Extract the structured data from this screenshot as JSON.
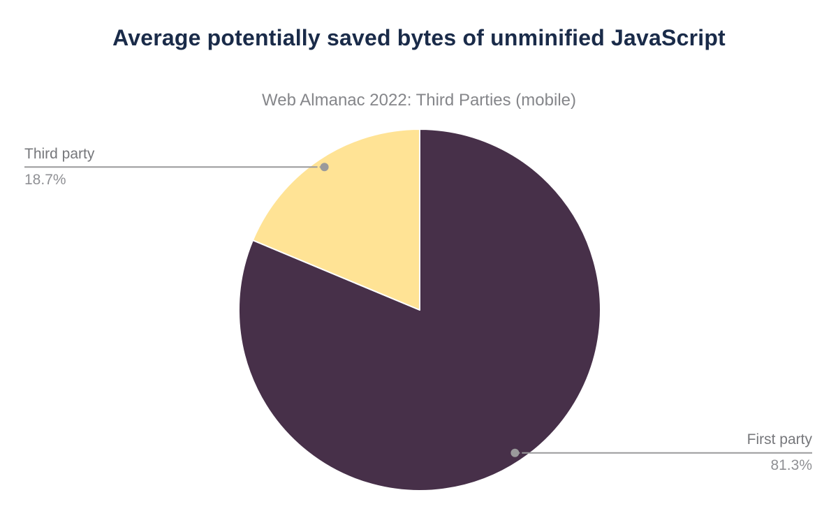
{
  "chart_data": {
    "type": "pie",
    "title": "Average potentially saved bytes of unminified JavaScript",
    "subtitle": "Web Almanac 2022: Third Parties (mobile)",
    "total": 100,
    "start_angle_deg": 0,
    "direction": "clockwise",
    "legend": "none",
    "label_style": "external-callout",
    "slices": [
      {
        "label": "First party",
        "value": 81.3,
        "display_value": "81.3%",
        "color": "#473049",
        "callout_side": "right"
      },
      {
        "label": "Third party",
        "value": 18.7,
        "display_value": "18.7%",
        "color": "#ffe395",
        "callout_side": "left"
      }
    ]
  },
  "styles": {
    "background": "#ffffff",
    "title_color": "#1a2b49",
    "subtitle_color": "#85868a",
    "label_name_color": "#76777b",
    "label_value_color": "#8f9094",
    "leader_color": "#9a9a9b",
    "slice_border_color": "#ffffff"
  }
}
